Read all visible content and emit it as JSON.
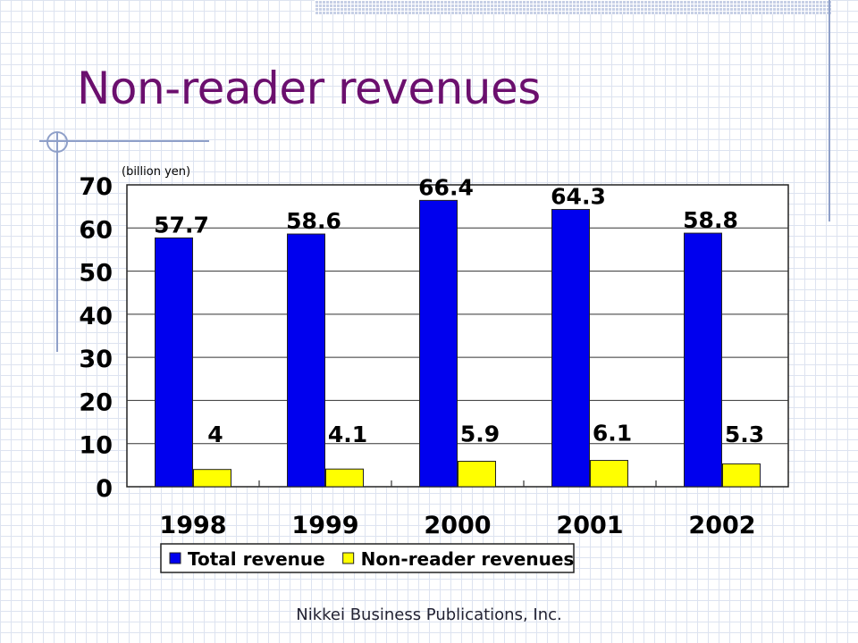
{
  "slide": {
    "title": "Non-reader revenues",
    "footer": "Nikkei Business Publications, Inc."
  },
  "colors": {
    "title": "#6b0f6e",
    "total_revenue": "#0000ee",
    "non_reader_revenues": "#ffff00",
    "decoration": "#8fa0c9"
  },
  "chart_data": {
    "type": "bar",
    "title": "",
    "ylabel": "(billion yen)",
    "xlabel": "",
    "categories": [
      "1998",
      "1999",
      "2000",
      "2001",
      "2002"
    ],
    "series": [
      {
        "name": "Total revenue",
        "values": [
          57.7,
          58.6,
          66.4,
          64.3,
          58.8
        ]
      },
      {
        "name": "Non-reader revenues",
        "values": [
          4,
          4.1,
          5.9,
          6.1,
          5.3
        ]
      }
    ],
    "data_labels": [
      [
        "57.7",
        "58.6",
        "66.4",
        "64.3",
        "58.8"
      ],
      [
        "4",
        "4.1",
        "5.9",
        "6.1",
        "5.3"
      ]
    ],
    "ylim": [
      0,
      70
    ],
    "yticks": [
      0,
      10,
      20,
      30,
      40,
      50,
      60,
      70
    ],
    "grid": true,
    "legend_position": "bottom"
  }
}
